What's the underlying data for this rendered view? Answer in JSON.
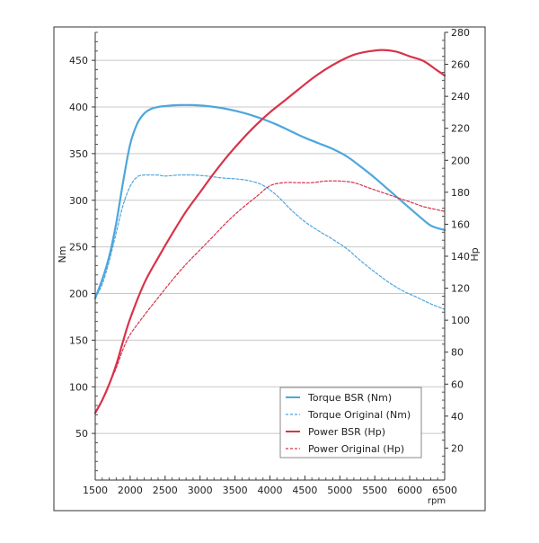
{
  "chart_data": {
    "type": "line",
    "xlabel": "rpm",
    "ylabel_left": "Nm",
    "ylabel_right": "Hp",
    "xlim": [
      1500,
      6500
    ],
    "ylim_left": [
      0,
      480
    ],
    "ylim_right": [
      0,
      280
    ],
    "x_ticks": [
      "1500",
      "2000",
      "2500",
      "3000",
      "3500",
      "4000",
      "4500",
      "5000",
      "5500",
      "6000",
      "6500"
    ],
    "y_left_ticks": [
      "50",
      "100",
      "150",
      "200",
      "250",
      "300",
      "350",
      "400",
      "450"
    ],
    "y_right_ticks": [
      "20",
      "40",
      "60",
      "80",
      "100",
      "120",
      "140",
      "160",
      "180",
      "200",
      "220",
      "240",
      "260",
      "280"
    ],
    "grid": true,
    "legend_position": "bottom-right",
    "series": [
      {
        "name": "Torque BSR (Nm)",
        "axis": "left",
        "style": "solid",
        "color": "#4ea6dc",
        "x": [
          1500,
          1600,
          1700,
          1800,
          1900,
          2000,
          2100,
          2200,
          2300,
          2400,
          2500,
          2700,
          2900,
          3100,
          3300,
          3500,
          3700,
          3900,
          4100,
          4300,
          4500,
          4700,
          4900,
          5100,
          5300,
          5500,
          5700,
          5900,
          6100,
          6300,
          6500
        ],
        "y": [
          195,
          215,
          240,
          275,
          320,
          360,
          382,
          393,
          398,
          400,
          401,
          402,
          402,
          401,
          399,
          396,
          392,
          387,
          381,
          374,
          367,
          361,
          355,
          347,
          336,
          324,
          311,
          298,
          285,
          273,
          268
        ]
      },
      {
        "name": "Torque Original (Nm)",
        "axis": "left",
        "style": "dashed",
        "color": "#4ea6dc",
        "x": [
          1500,
          1600,
          1700,
          1800,
          1900,
          2000,
          2100,
          2200,
          2300,
          2400,
          2500,
          2700,
          2900,
          3100,
          3300,
          3500,
          3700,
          3900,
          4100,
          4300,
          4500,
          4700,
          4900,
          5100,
          5300,
          5500,
          5700,
          5900,
          6100,
          6300,
          6500
        ],
        "y": [
          195,
          210,
          235,
          265,
          295,
          315,
          325,
          327,
          327,
          327,
          326,
          327,
          327,
          326,
          324,
          323,
          321,
          316,
          305,
          290,
          277,
          267,
          258,
          248,
          235,
          223,
          212,
          203,
          196,
          189,
          183
        ]
      },
      {
        "name": "Power BSR (Hp)",
        "axis": "right",
        "style": "solid",
        "color": "#d8334a",
        "x": [
          1500,
          1600,
          1700,
          1800,
          1900,
          2000,
          2200,
          2400,
          2600,
          2800,
          3000,
          3200,
          3400,
          3600,
          3800,
          4000,
          4200,
          4400,
          4600,
          4800,
          5000,
          5200,
          5400,
          5600,
          5800,
          6000,
          6200,
          6400,
          6500
        ],
        "y": [
          42,
          50,
          60,
          72,
          87,
          101,
          123,
          139,
          154,
          168,
          180,
          192,
          203,
          213,
          222,
          230,
          237,
          244,
          251,
          257,
          262,
          266,
          268,
          269,
          268,
          265,
          262,
          256,
          253
        ]
      },
      {
        "name": "Power Original (Hp)",
        "axis": "right",
        "style": "dashed",
        "color": "#d8334a",
        "x": [
          1500,
          1600,
          1700,
          1800,
          1900,
          2000,
          2200,
          2400,
          2600,
          2800,
          3000,
          3200,
          3400,
          3600,
          3800,
          4000,
          4200,
          4400,
          4600,
          4800,
          5000,
          5200,
          5400,
          5600,
          5800,
          6000,
          6200,
          6400,
          6500
        ],
        "y": [
          42,
          50,
          60,
          70,
          82,
          91,
          103,
          114,
          125,
          135,
          144,
          153,
          162,
          170,
          177,
          184,
          186,
          186,
          186,
          187,
          187,
          186,
          183,
          180,
          177,
          174,
          171,
          169,
          168
        ]
      }
    ]
  }
}
